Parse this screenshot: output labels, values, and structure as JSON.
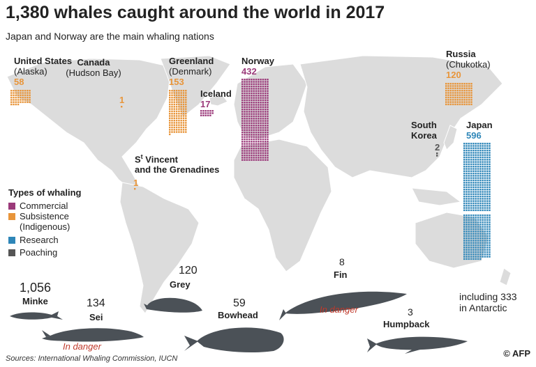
{
  "title": "1,380 whales caught around the world in 2017",
  "subtitle": "Japan and Norway are the main whaling nations",
  "colors": {
    "commercial": "#9b3a7a",
    "subsistence": "#e8953a",
    "research": "#2e86b8",
    "poaching": "#555555",
    "land": "#dcdcdc",
    "whale": "#4b5157"
  },
  "countries": {
    "usa": {
      "name": "United States",
      "sub": "(Alaska)",
      "count": "58",
      "type": "subsistence"
    },
    "canada": {
      "name": "Canada",
      "sub": "(Hudson Bay)",
      "count": "1",
      "type": "subsistence"
    },
    "greenland": {
      "name": "Greenland",
      "sub": "(Denmark)",
      "count": "153",
      "type": "subsistence"
    },
    "iceland": {
      "name": "Iceland",
      "count": "17",
      "type": "commercial"
    },
    "norway": {
      "name": "Norway",
      "count": "432",
      "type": "commercial"
    },
    "russia": {
      "name": "Russia",
      "sub": "(Chukotka)",
      "count": "120",
      "type": "subsistence"
    },
    "south_korea": {
      "name": "South",
      "name2": "Korea",
      "count": "2",
      "type": "poaching"
    },
    "japan": {
      "name": "Japan",
      "count": "596",
      "type": "research",
      "note1": "including 333",
      "note2": "in  Antarctic"
    },
    "st_vincent": {
      "name_prefix": "S",
      "name_sup": "t",
      "name_rest": " Vincent",
      "name2": "and the Grenadines",
      "count": "1",
      "type": "subsistence"
    }
  },
  "legend": {
    "title": "Types of whaling",
    "items": [
      {
        "label": "Commercial",
        "color": "#9b3a7a"
      },
      {
        "label": "Subsistence",
        "label2": "(Indigenous)",
        "color": "#e8953a"
      },
      {
        "label": "Research",
        "color": "#2e86b8"
      },
      {
        "label": "Poaching",
        "color": "#555555"
      }
    ]
  },
  "species": {
    "minke": {
      "count": "1,056",
      "name": "Minke"
    },
    "sei": {
      "count": "134",
      "name": "Sei",
      "status": "In danger"
    },
    "grey": {
      "count": "120",
      "name": "Grey"
    },
    "bowhead": {
      "count": "59",
      "name": "Bowhead"
    },
    "fin": {
      "count": "8",
      "name": "Fin",
      "status": "In danger"
    },
    "humpback": {
      "count": "3",
      "name": "Humpback"
    }
  },
  "sources": "Sources: International Whaling Commission, IUCN",
  "credit": "© AFP"
}
